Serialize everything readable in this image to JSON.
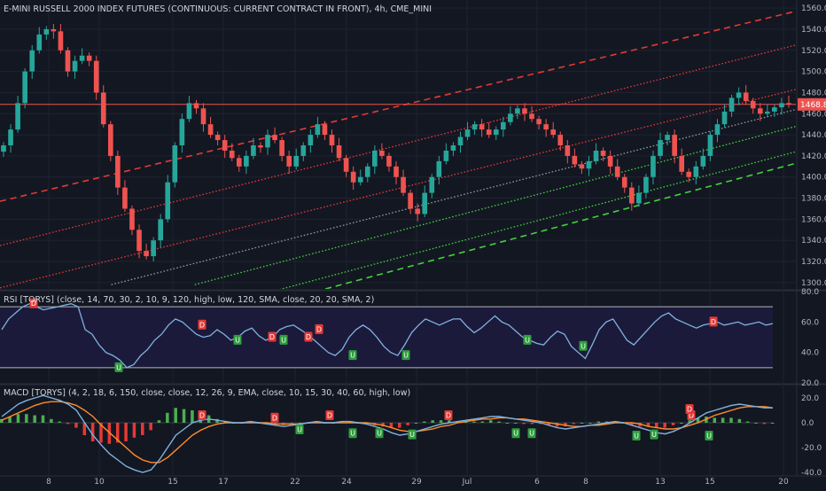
{
  "main_title": "E-MINI RUSSELL 2000 INDEX FUTURES (CONTINUOUS: CURRENT CONTRACT IN FRONT), 4h, CME_MINI",
  "rsi_title": "RSI [TORYS] (close, 14, 70, 30, 2, 10, 9, 120, high, low, 120, SMA, close, 20, 20, SMA, 2)",
  "macd_title": "MACD [TORYS] (4, 2, 18, 6, 150, close, close, 12, 26, 9, EMA, close, 10, 15, 30, 40, 60, high, low)",
  "colors": {
    "background": "#131722",
    "up_candle": "#26a69a",
    "down_candle": "#ef5350",
    "red_channel": "#e53935",
    "green_channel": "#43d13d",
    "rsi_line": "#7fb3e0",
    "macd_line": "#7fb3e0",
    "signal_line": "#ff8c2a"
  },
  "last_price_label": "1468.8",
  "signal_markers": {
    "up": "U",
    "down": "D"
  },
  "chart_data": [
    {
      "type": "candlestick",
      "x_tick_labels": [
        "8",
        "10",
        "15",
        "17",
        "22",
        "24",
        "29",
        "Jul",
        "6",
        "8",
        "13",
        "15",
        "20"
      ],
      "y_ticks": [
        1300,
        1320,
        1340,
        1360,
        1380,
        1400,
        1420,
        1440,
        1460,
        1480,
        1500,
        1520,
        1540,
        1560
      ],
      "ylim": [
        1294,
        1566
      ],
      "last_price": 1468.8,
      "close_path": [
        1430,
        1445,
        1470,
        1500,
        1520,
        1535,
        1540,
        1538,
        1520,
        1500,
        1510,
        1515,
        1510,
        1480,
        1450,
        1420,
        1390,
        1370,
        1350,
        1330,
        1325,
        1340,
        1360,
        1395,
        1430,
        1455,
        1470,
        1465,
        1450,
        1440,
        1435,
        1425,
        1418,
        1410,
        1420,
        1430,
        1428,
        1440,
        1435,
        1420,
        1410,
        1420,
        1430,
        1440,
        1450,
        1440,
        1430,
        1418,
        1405,
        1395,
        1400,
        1410,
        1425,
        1420,
        1410,
        1400,
        1385,
        1370,
        1365,
        1385,
        1400,
        1415,
        1425,
        1430,
        1438,
        1445,
        1450,
        1445,
        1440,
        1445,
        1452,
        1460,
        1465,
        1460,
        1455,
        1450,
        1445,
        1440,
        1430,
        1420,
        1412,
        1408,
        1415,
        1425,
        1420,
        1410,
        1400,
        1390,
        1375,
        1385,
        1400,
        1420,
        1435,
        1440,
        1420,
        1405,
        1400,
        1410,
        1420,
        1440,
        1450,
        1462,
        1475,
        1480,
        1472,
        1465,
        1460,
        1462,
        1466,
        1470,
        1468.8
      ],
      "channels": [
        {
          "color": "red",
          "style": "dashed",
          "points": [
            [
              0,
              1377
            ],
            [
              143,
              1557
            ]
          ]
        },
        {
          "color": "red",
          "style": "dotted",
          "points": [
            [
              0,
              1335
            ],
            [
              143,
              1525
            ]
          ]
        },
        {
          "color": "red",
          "style": "dotted",
          "points": [
            [
              0,
              1295
            ],
            [
              143,
              1483
            ]
          ]
        },
        {
          "color": "white",
          "style": "dotted",
          "points": [
            [
              20,
              1298
            ],
            [
              143,
              1464
            ]
          ]
        },
        {
          "color": "green",
          "style": "dotted",
          "points": [
            [
              35,
              1298
            ],
            [
              143,
              1448
            ]
          ]
        },
        {
          "color": "green",
          "style": "dotted",
          "points": [
            [
              35,
              1272
            ],
            [
              143,
              1424
            ]
          ]
        },
        {
          "color": "green",
          "style": "dashed",
          "points": [
            [
              40,
              1268
            ],
            [
              143,
              1413
            ]
          ]
        }
      ],
      "horizontal_line": 1468.8
    },
    {
      "type": "line",
      "name": "RSI",
      "y_ticks": [
        20,
        40,
        60,
        80
      ],
      "ylim": [
        20,
        80
      ],
      "levels": [
        70,
        30
      ],
      "values": [
        55,
        62,
        66,
        70,
        72,
        70,
        68,
        69,
        70,
        71,
        72,
        70,
        55,
        52,
        45,
        40,
        38,
        35,
        30,
        32,
        38,
        42,
        48,
        52,
        58,
        62,
        60,
        56,
        52,
        50,
        51,
        55,
        52,
        48,
        50,
        54,
        56,
        51,
        48,
        50,
        55,
        57,
        58,
        55,
        52,
        48,
        44,
        40,
        38,
        42,
        50,
        55,
        58,
        55,
        50,
        44,
        40,
        38,
        45,
        53,
        58,
        62,
        60,
        58,
        60,
        62,
        62,
        57,
        53,
        56,
        60,
        64,
        60,
        58,
        54,
        50,
        48,
        46,
        45,
        50,
        54,
        52,
        44,
        40,
        36,
        45,
        55,
        60,
        62,
        55,
        48,
        45,
        50,
        55,
        60,
        64,
        66,
        62,
        60,
        58,
        56,
        58,
        59,
        60,
        58,
        59,
        60,
        58,
        59,
        60,
        58,
        59
      ],
      "signals": [
        {
          "kind": "down",
          "value": 72
        },
        {
          "kind": "up",
          "value": 30
        },
        {
          "kind": "down",
          "value": 58
        },
        {
          "kind": "up",
          "value": 48
        },
        {
          "kind": "down",
          "value": 50
        },
        {
          "kind": "up",
          "value": 48
        },
        {
          "kind": "down",
          "value": 50
        },
        {
          "kind": "down",
          "value": 55
        },
        {
          "kind": "up",
          "value": 38
        },
        {
          "kind": "up",
          "value": 38
        },
        {
          "kind": "up",
          "value": 48
        },
        {
          "kind": "up",
          "value": 44
        },
        {
          "kind": "down",
          "value": 60
        }
      ]
    },
    {
      "type": "bar+line",
      "name": "MACD",
      "y_ticks": [
        -40,
        -20,
        0,
        20
      ],
      "ylim": [
        -40,
        30
      ],
      "macd": [
        5,
        10,
        15,
        18,
        20,
        22,
        20,
        18,
        15,
        10,
        0,
        -10,
        -18,
        -25,
        -30,
        -35,
        -38,
        -40,
        -38,
        -30,
        -20,
        -10,
        -5,
        0,
        2,
        3,
        2,
        1,
        0,
        0,
        1,
        0,
        -1,
        -2,
        -3,
        -2,
        -1,
        0,
        1,
        0,
        0,
        1,
        1,
        0,
        -1,
        -3,
        -5,
        -8,
        -10,
        -9,
        -7,
        -5,
        -3,
        -1,
        0,
        1,
        2,
        3,
        4,
        5,
        5,
        4,
        3,
        2,
        1,
        0,
        -2,
        -4,
        -5,
        -4,
        -3,
        -2,
        -1,
        0,
        1,
        0,
        -2,
        -4,
        -6,
        -8,
        -9,
        -7,
        -4,
        0,
        4,
        8,
        10,
        12,
        14,
        15,
        14,
        13,
        12,
        12
      ],
      "signal": [
        2,
        5,
        8,
        11,
        14,
        16,
        17,
        17,
        16,
        14,
        10,
        5,
        -2,
        -8,
        -14,
        -20,
        -26,
        -30,
        -32,
        -32,
        -28,
        -22,
        -16,
        -10,
        -6,
        -3,
        -1,
        0,
        0,
        0,
        0,
        0,
        0,
        -1,
        -1,
        -1,
        -1,
        0,
        0,
        0,
        0,
        0,
        0,
        0,
        0,
        -1,
        -2,
        -4,
        -6,
        -7,
        -7,
        -6,
        -5,
        -3,
        -2,
        0,
        1,
        2,
        3,
        3,
        4,
        4,
        3,
        3,
        2,
        1,
        0,
        -1,
        -2,
        -3,
        -3,
        -2,
        -2,
        -1,
        0,
        0,
        0,
        -1,
        -3,
        -4,
        -5,
        -5,
        -4,
        -2,
        0,
        3,
        6,
        8,
        10,
        12,
        13,
        13,
        13,
        12
      ],
      "signals": [
        {
          "kind": "down",
          "value": 0
        },
        {
          "kind": "down",
          "value": -2
        },
        {
          "kind": "up",
          "value": 0
        },
        {
          "kind": "down",
          "value": 0
        },
        {
          "kind": "up",
          "value": -3
        },
        {
          "kind": "up",
          "value": -3
        },
        {
          "kind": "up",
          "value": -4
        },
        {
          "kind": "down",
          "value": 0
        },
        {
          "kind": "up",
          "value": -3
        },
        {
          "kind": "up",
          "value": -3
        },
        {
          "kind": "up",
          "value": -5
        },
        {
          "kind": "up",
          "value": -4
        },
        {
          "kind": "down",
          "value": 0
        },
        {
          "kind": "down",
          "value": 5
        },
        {
          "kind": "up",
          "value": -5
        }
      ]
    }
  ]
}
